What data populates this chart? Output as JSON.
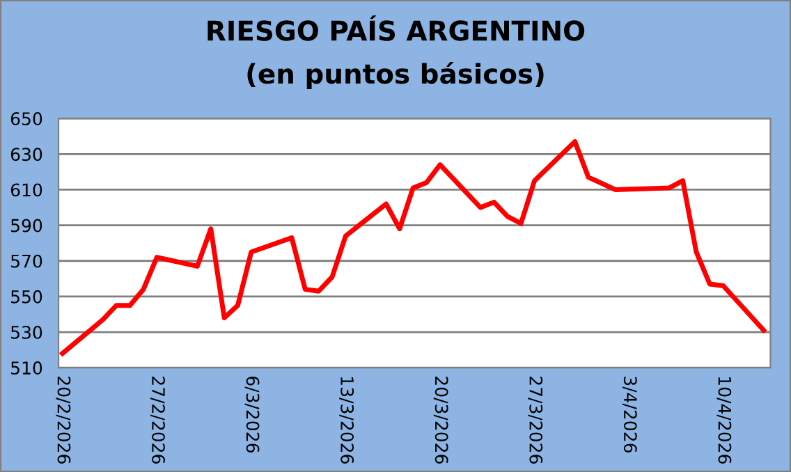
{
  "chart_data": {
    "type": "line",
    "title": "RIESGO PAÍS ARGENTINO",
    "subtitle": "(en puntos básicos)",
    "x": [
      "2026-02-20",
      "2026-02-23",
      "2026-02-24",
      "2026-02-25",
      "2026-02-26",
      "2026-02-27",
      "2026-03-02",
      "2026-03-03",
      "2026-03-04",
      "2026-03-05",
      "2026-03-06",
      "2026-03-09",
      "2026-03-10",
      "2026-03-11",
      "2026-03-12",
      "2026-03-13",
      "2026-03-16",
      "2026-03-17",
      "2026-03-18",
      "2026-03-19",
      "2026-03-20",
      "2026-03-23",
      "2026-03-24",
      "2026-03-25",
      "2026-03-26",
      "2026-03-27",
      "2026-03-30",
      "2026-03-31",
      "2026-04-02",
      "2026-04-06",
      "2026-04-07",
      "2026-04-08",
      "2026-04-09",
      "2026-04-10",
      "2026-04-13"
    ],
    "series": [
      {
        "color": "#ff0000",
        "values": [
          518,
          537,
          545,
          545,
          554,
          572,
          567,
          588,
          538,
          545,
          575,
          583,
          554,
          553,
          561,
          584,
          602,
          588,
          611,
          614,
          624,
          600,
          603,
          595,
          591,
          615,
          637,
          617,
          610,
          611,
          615,
          575,
          557,
          556,
          531
        ]
      }
    ],
    "xlim": [
      "2026-02-19T17:00",
      "2026-04-13T12:00"
    ],
    "xticks": [
      {
        "value": "2026-02-20",
        "label": "20/2/2026"
      },
      {
        "value": "2026-02-27",
        "label": "27/2/2026"
      },
      {
        "value": "2026-03-06",
        "label": "6/3/2026"
      },
      {
        "value": "2026-03-13",
        "label": "13/3/2026"
      },
      {
        "value": "2026-03-20",
        "label": "20/3/2026"
      },
      {
        "value": "2026-03-27",
        "label": "27/3/2026"
      },
      {
        "value": "2026-04-03",
        "label": "3/4/2026"
      },
      {
        "value": "2026-04-10",
        "label": "10/4/2026"
      }
    ],
    "ylim": [
      510,
      650
    ],
    "yticks": [
      510,
      530,
      550,
      570,
      590,
      610,
      630,
      650
    ],
    "grid": "y",
    "legend": false,
    "marker": "none",
    "line_style": "solid"
  }
}
